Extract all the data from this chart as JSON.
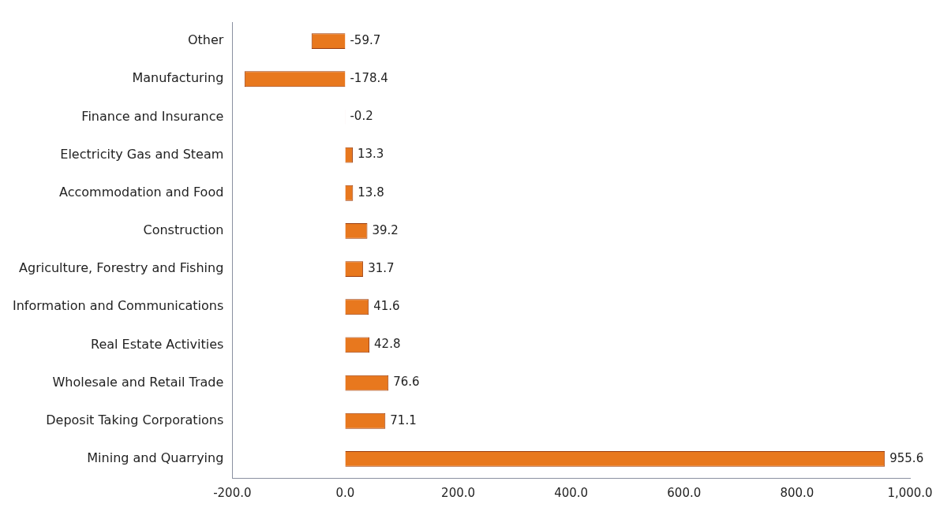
{
  "chart_data": {
    "type": "bar",
    "orientation": "horizontal",
    "categories": [
      "Other",
      "Manufacturing",
      "Finance and Insurance",
      "Electricity Gas and Steam",
      "Accommodation and Food",
      "Construction",
      "Agriculture, Forestry and Fishing",
      "Information and Communications",
      "Real Estate Activities",
      "Wholesale and Retail Trade",
      "Deposit Taking Corporations",
      "Mining and Quarrying"
    ],
    "values": [
      -59.7,
      -178.4,
      -0.2,
      13.3,
      13.8,
      39.2,
      31.7,
      41.6,
      42.8,
      76.6,
      71.1,
      955.6
    ],
    "color": "#e8781e",
    "xlim": [
      -200,
      1000
    ],
    "xticks": [
      {
        "value": -200,
        "label": "-200.0"
      },
      {
        "value": 0,
        "label": "0.0"
      },
      {
        "value": 200,
        "label": "200.0"
      },
      {
        "value": 400,
        "label": "400.0"
      },
      {
        "value": 600,
        "label": "600.0"
      },
      {
        "value": 800,
        "label": "800.0"
      },
      {
        "value": 1000,
        "label": "1,000.0"
      }
    ],
    "grid": false,
    "legend": false,
    "data_labels": true
  }
}
